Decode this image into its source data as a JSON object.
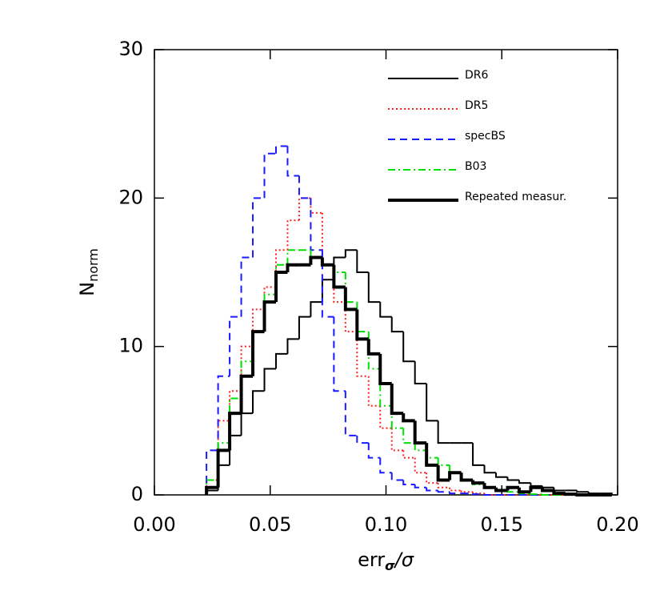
{
  "chart_data": {
    "type": "histogram",
    "xlabel": {
      "text": "err",
      "sub": "σ",
      "tail": "/σ"
    },
    "ylabel": {
      "text": "N",
      "sub": "norm"
    },
    "bins": [
      0.0225,
      0.0275,
      0.0325,
      0.0375,
      0.0425,
      0.0475,
      0.0525,
      0.0575,
      0.0625,
      0.0675,
      0.0725,
      0.0775,
      0.0825,
      0.0875,
      0.0925,
      0.0975,
      0.1025,
      0.1075,
      0.1125,
      0.1175,
      0.1225,
      0.1275,
      0.1325,
      0.1375,
      0.1425,
      0.1475,
      0.1525,
      0.1575,
      0.1625,
      0.1675,
      0.1725,
      0.1775,
      0.1825,
      0.1875,
      0.1925,
      0.1975
    ],
    "series": [
      {
        "name": "DR6",
        "color": "#000000",
        "dash": "none",
        "linewidth": 2,
        "values": [
          0.3,
          2,
          4,
          5.5,
          7,
          8.5,
          9.5,
          10.5,
          12,
          13,
          14.5,
          16,
          16.5,
          15,
          13,
          12,
          11,
          9,
          7.5,
          5,
          3.5,
          3.5,
          3.5,
          2,
          1.5,
          1.2,
          1,
          0.8,
          0.6,
          0.5,
          0.3,
          0.3,
          0.2,
          0.1,
          0.1
        ]
      },
      {
        "name": "DR5",
        "color": "#ff2020",
        "dash": "2,3",
        "linewidth": 2,
        "values": [
          1,
          5,
          7,
          10,
          12.5,
          14,
          16.5,
          18.5,
          20,
          19,
          15.5,
          13,
          11,
          8,
          6,
          4.5,
          3,
          2.5,
          1.5,
          0.8,
          0.5,
          0.3,
          0.2,
          0.1,
          0,
          0,
          0,
          0,
          0,
          0,
          0,
          0,
          0,
          0,
          0
        ]
      },
      {
        "name": "specBS",
        "color": "#1a1aff",
        "dash": "9,6",
        "linewidth": 2,
        "values": [
          3,
          8,
          12,
          16,
          20,
          23,
          23.5,
          21.5,
          20,
          16.5,
          12,
          7,
          4,
          3.5,
          2.5,
          1.5,
          1,
          0.7,
          0.5,
          0.3,
          0.2,
          0.1,
          0.1,
          0.05,
          0,
          0,
          0,
          0,
          0,
          0,
          0,
          0,
          0,
          0,
          0
        ]
      },
      {
        "name": "B03",
        "color": "#00e000",
        "dash": "9,4,2,4",
        "linewidth": 2,
        "values": [
          1,
          3.5,
          6.5,
          9,
          11,
          13.5,
          15.5,
          16.5,
          16.5,
          16,
          15.5,
          15,
          13,
          11,
          8.5,
          6,
          4.5,
          3.5,
          3,
          2.5,
          2,
          1.5,
          1,
          0.7,
          0.5,
          0.3,
          0.2,
          0.1,
          0.05,
          0,
          0,
          0,
          0,
          0,
          0
        ]
      },
      {
        "name": "Repeated measur.",
        "color": "#000000",
        "dash": "none",
        "linewidth": 4,
        "values": [
          0.5,
          3,
          5.5,
          8,
          11,
          13,
          15,
          15.5,
          15.5,
          16,
          15.5,
          14,
          12.5,
          10.5,
          9.5,
          7.5,
          5.5,
          5,
          3.5,
          2,
          1,
          1.5,
          1,
          0.8,
          0.5,
          0.3,
          0.5,
          0.2,
          0.5,
          0.3,
          0.1,
          0.05,
          0,
          0,
          0
        ]
      }
    ],
    "xlim": [
      0,
      0.2
    ],
    "xticks": [
      {
        "value": 0,
        "label": "0.00"
      },
      {
        "value": 0.05,
        "label": "0.05"
      },
      {
        "value": 0.1,
        "label": "0.10"
      },
      {
        "value": 0.15,
        "label": "0.15"
      },
      {
        "value": 0.2,
        "label": "0.20"
      }
    ],
    "ylim": [
      0,
      30
    ],
    "yticks": [
      0,
      10,
      20,
      30
    ],
    "legend": "upper right"
  }
}
